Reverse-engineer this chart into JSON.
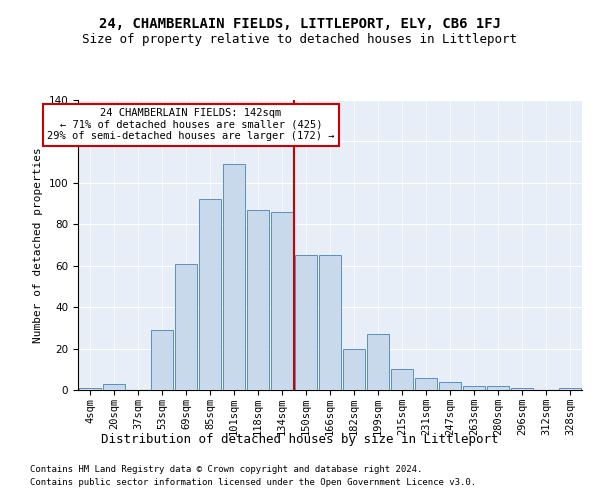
{
  "title": "24, CHAMBERLAIN FIELDS, LITTLEPORT, ELY, CB6 1FJ",
  "subtitle": "Size of property relative to detached houses in Littleport",
  "xlabel": "Distribution of detached houses by size in Littleport",
  "ylabel": "Number of detached properties",
  "categories": [
    "4sqm",
    "20sqm",
    "37sqm",
    "53sqm",
    "69sqm",
    "85sqm",
    "101sqm",
    "118sqm",
    "134sqm",
    "150sqm",
    "166sqm",
    "182sqm",
    "199sqm",
    "215sqm",
    "231sqm",
    "247sqm",
    "263sqm",
    "280sqm",
    "296sqm",
    "312sqm",
    "328sqm"
  ],
  "values": [
    1,
    3,
    0,
    29,
    61,
    92,
    109,
    87,
    86,
    65,
    65,
    20,
    27,
    10,
    6,
    4,
    2,
    2,
    1,
    0,
    1
  ],
  "bar_color": "#c8d9eb",
  "bar_edge_color": "#5a8fc0",
  "vline_color": "#cc0000",
  "vline_pos": 8.5,
  "annotation_text": "24 CHAMBERLAIN FIELDS: 142sqm\n← 71% of detached houses are smaller (425)\n29% of semi-detached houses are larger (172) →",
  "annotation_box_color": "#cc0000",
  "footer_line1": "Contains HM Land Registry data © Crown copyright and database right 2024.",
  "footer_line2": "Contains public sector information licensed under the Open Government Licence v3.0.",
  "bg_color": "#e8eef7",
  "ylim": [
    0,
    140
  ],
  "title_fontsize": 10,
  "subtitle_fontsize": 9,
  "xlabel_fontsize": 9,
  "ylabel_fontsize": 8,
  "tick_fontsize": 7.5,
  "footer_fontsize": 6.5
}
